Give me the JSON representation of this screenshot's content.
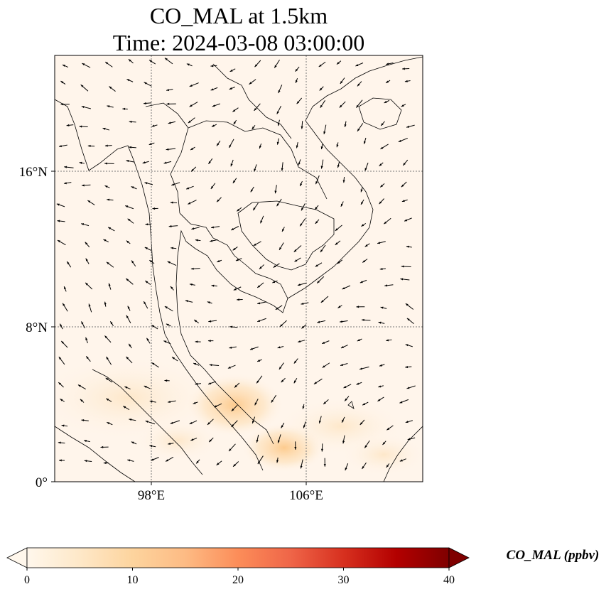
{
  "title": {
    "line1": "CO_MAL at 1.5km",
    "line2": "Time: 2024-03-08 03:00:00"
  },
  "map": {
    "extent": {
      "lon": [
        92.7,
        111.7
      ],
      "lat": [
        0,
        22
      ]
    },
    "gridlines": {
      "style": "dotted",
      "lons": [
        98,
        106
      ],
      "lats": [
        0,
        8,
        16
      ]
    },
    "lat_ticks": [
      {
        "value": 16,
        "label": "16°N"
      },
      {
        "value": 8,
        "label": "8°N"
      },
      {
        "value": 0,
        "label": "0°"
      }
    ],
    "lon_ticks": [
      {
        "value": 98,
        "label": "98°E"
      },
      {
        "value": 106,
        "label": "106°E"
      }
    ],
    "background_color": "#fff5eb",
    "coastline_color": "#000000",
    "wind_arrows": "quiver, generally easterly/northeasterly flow"
  },
  "colorbar": {
    "cmap": "OrRd",
    "min": 0,
    "max": 40,
    "extend": "both",
    "ticks": [
      {
        "value": 0,
        "label": "0"
      },
      {
        "value": 10,
        "label": "10"
      },
      {
        "value": 20,
        "label": "20"
      },
      {
        "value": 30,
        "label": "30"
      },
      {
        "value": 40,
        "label": "40"
      }
    ],
    "label": "CO_MAL (ppbv)",
    "colors": [
      "#fff7ec",
      "#fee8c8",
      "#fdd49e",
      "#fdbb84",
      "#fc8d59",
      "#ef6548",
      "#d7301f",
      "#b30000",
      "#7f0000"
    ]
  }
}
